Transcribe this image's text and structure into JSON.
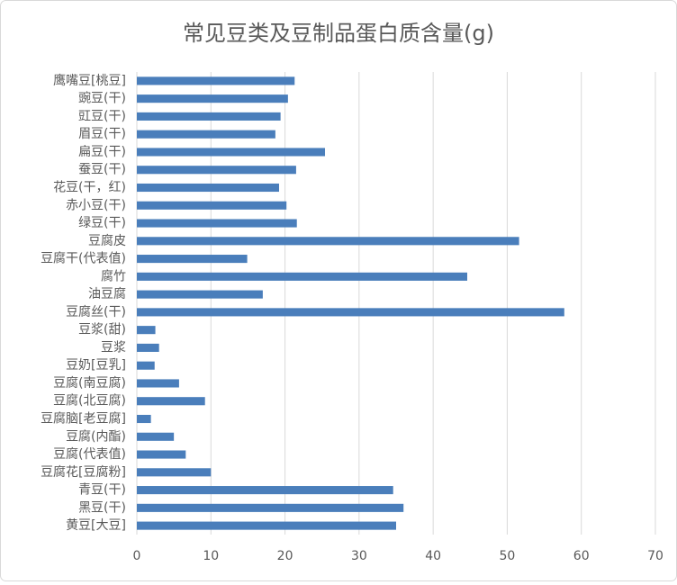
{
  "chart_data": {
    "type": "bar",
    "orientation": "horizontal",
    "title": "常见豆类及豆制品蛋白质含量(g)",
    "categories": [
      "鹰嘴豆[桃豆]",
      "豌豆(干)",
      "豇豆(干)",
      "眉豆(干)",
      "扁豆(干)",
      "蚕豆(干)",
      "花豆(干，红)",
      "赤小豆(干)",
      "绿豆(干)",
      "豆腐皮",
      "豆腐干(代表值)",
      "腐竹",
      "油豆腐",
      "豆腐丝(干)",
      "豆浆(甜)",
      "豆浆",
      "豆奶[豆乳]",
      "豆腐(南豆腐)",
      "豆腐(北豆腐)",
      "豆腐脑[老豆腐]",
      "豆腐(内酯)",
      "豆腐(代表值)",
      "豆腐花[豆腐粉]",
      "青豆(干)",
      "黑豆(干)",
      "黄豆[大豆]"
    ],
    "values": [
      21.3,
      20.4,
      19.4,
      18.7,
      25.4,
      21.5,
      19.2,
      20.2,
      21.6,
      51.6,
      14.9,
      44.6,
      17.0,
      57.7,
      2.5,
      3.0,
      2.4,
      5.7,
      9.2,
      1.9,
      5.0,
      6.6,
      10.0,
      34.6,
      36.0,
      35.0
    ],
    "color": "#4a7ebb",
    "xlim": [
      0,
      70
    ],
    "xticks": [
      0,
      10,
      20,
      30,
      40,
      50,
      60,
      70
    ],
    "grid": true
  }
}
